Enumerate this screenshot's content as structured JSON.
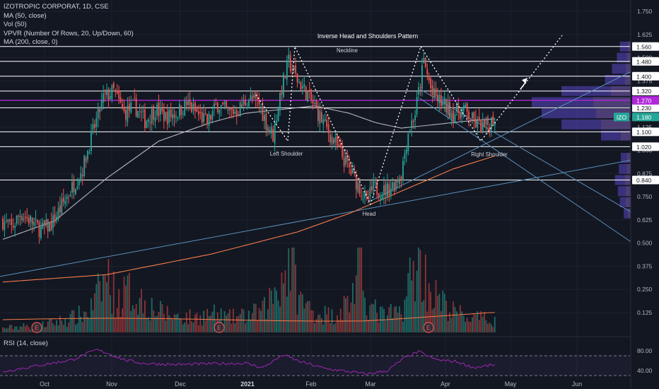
{
  "colors": {
    "background": "#131722",
    "up": "#26a69a",
    "down": "#ef5350",
    "up_vol": "#1f7a72",
    "down_vol": "#a03a3a",
    "ma50": "#b2b5be",
    "ma200": "#f57c4a",
    "trend": "#5b8fb9",
    "pattern": "#ffffff",
    "hline": "#ffffff",
    "purple_line": "#b027d9",
    "ticker": "#26a69a",
    "vpvr_up": "#5a47c7",
    "vpvr_down": "#7b5fb8",
    "rsi": "#9c27b0"
  },
  "legend": {
    "title": "IZOTROPIC CORPORAT, 1D, CSE",
    "line2": "MA (50, close)",
    "line3": "Vol (50)",
    "line4": "VPVR (Number Of Rows, 20, Up/Down, 60)",
    "line5": "MA (200, close, 0)"
  },
  "rsi_legend": "RSI (14, close)",
  "chart_data": {
    "type": "candlestick",
    "symbol": "IZO",
    "last_price": "1.180",
    "y_ticks": [
      "1.750",
      "1.625",
      "1.500",
      "1.375",
      "1.250",
      "1.125",
      "1.000",
      "0.875",
      "0.750",
      "0.625",
      "0.500",
      "0.375",
      "0.250",
      "0.125"
    ],
    "y_tick_values": [
      1.75,
      1.625,
      1.5,
      1.375,
      1.25,
      1.125,
      1.0,
      0.875,
      0.75,
      0.625,
      0.5,
      0.375,
      0.25,
      0.125
    ],
    "price_levels": [
      {
        "value": 1.56,
        "label": "1.560"
      },
      {
        "value": 1.48,
        "label": "1.480"
      },
      {
        "value": 1.4,
        "label": "1.400"
      },
      {
        "value": 1.32,
        "label": "1.320"
      },
      {
        "value": 1.23,
        "label": "1.230"
      },
      {
        "value": 1.1,
        "label": "1.100"
      },
      {
        "value": 1.02,
        "label": "1.020"
      },
      {
        "value": 0.84,
        "label": "0.840"
      }
    ],
    "purple_level": {
      "value": 1.27,
      "label": "1.270"
    },
    "x_labels": [
      {
        "label": "Oct",
        "bold": false
      },
      {
        "label": "Nov",
        "bold": false
      },
      {
        "label": "Dec",
        "bold": false
      },
      {
        "label": "2021",
        "bold": true
      },
      {
        "label": "Feb",
        "bold": false
      },
      {
        "label": "Mar",
        "bold": false
      },
      {
        "label": "Apr",
        "bold": false
      },
      {
        "label": "May",
        "bold": false
      },
      {
        "label": "Jun",
        "bold": false
      }
    ],
    "annotations": {
      "pattern_title": "Inverse Head and Shoulders Pattern",
      "neckline": "Neckline",
      "left_shoulder": "Left Shoulder",
      "head": "Head",
      "right_shoulder": "Right Shoulder"
    },
    "earnings_marker": "E",
    "rsi_ticks": [
      "80.00",
      "40.00"
    ],
    "close_path": [
      [
        0,
        0.62
      ],
      [
        5,
        0.58
      ],
      [
        10,
        0.66
      ],
      [
        16,
        0.62
      ],
      [
        22,
        0.57
      ],
      [
        28,
        0.6
      ],
      [
        34,
        0.7
      ],
      [
        40,
        0.8
      ],
      [
        46,
        0.9
      ],
      [
        52,
        1.1
      ],
      [
        58,
        1.28
      ],
      [
        64,
        1.32
      ],
      [
        70,
        1.2
      ],
      [
        76,
        1.24
      ],
      [
        82,
        1.16
      ],
      [
        88,
        1.22
      ],
      [
        94,
        1.18
      ],
      [
        100,
        1.2
      ],
      [
        106,
        1.25
      ],
      [
        112,
        1.2
      ],
      [
        118,
        1.15
      ],
      [
        124,
        1.25
      ],
      [
        130,
        1.2
      ],
      [
        136,
        1.22
      ],
      [
        142,
        1.28
      ],
      [
        148,
        1.25
      ],
      [
        152,
        1.15
      ],
      [
        156,
        1.08
      ],
      [
        160,
        1.3
      ],
      [
        165,
        1.48
      ],
      [
        170,
        1.38
      ],
      [
        176,
        1.3
      ],
      [
        182,
        1.2
      ],
      [
        188,
        1.1
      ],
      [
        194,
        1.0
      ],
      [
        200,
        0.9
      ],
      [
        206,
        0.8
      ],
      [
        210,
        0.72
      ],
      [
        214,
        0.8
      ],
      [
        220,
        0.78
      ],
      [
        226,
        0.82
      ],
      [
        230,
        0.88
      ],
      [
        234,
        1.1
      ],
      [
        238,
        1.2
      ],
      [
        243,
        1.48
      ],
      [
        248,
        1.3
      ],
      [
        254,
        1.25
      ],
      [
        260,
        1.2
      ],
      [
        266,
        1.22
      ],
      [
        272,
        1.15
      ],
      [
        278,
        1.12
      ],
      [
        284,
        1.18
      ]
    ],
    "volume_path": [
      [
        0,
        0.02
      ],
      [
        10,
        0.03
      ],
      [
        20,
        0.03
      ],
      [
        30,
        0.05
      ],
      [
        40,
        0.07
      ],
      [
        50,
        0.1
      ],
      [
        56,
        0.2
      ],
      [
        60,
        0.28
      ],
      [
        66,
        0.15
      ],
      [
        72,
        0.2
      ],
      [
        80,
        0.16
      ],
      [
        90,
        0.1
      ],
      [
        100,
        0.08
      ],
      [
        110,
        0.07
      ],
      [
        120,
        0.09
      ],
      [
        130,
        0.07
      ],
      [
        140,
        0.08
      ],
      [
        150,
        0.1
      ],
      [
        160,
        0.25
      ],
      [
        166,
        0.35
      ],
      [
        172,
        0.15
      ],
      [
        180,
        0.1
      ],
      [
        190,
        0.08
      ],
      [
        200,
        0.15
      ],
      [
        206,
        0.3
      ],
      [
        212,
        0.12
      ],
      [
        220,
        0.08
      ],
      [
        230,
        0.1
      ],
      [
        236,
        0.28
      ],
      [
        240,
        0.35
      ],
      [
        246,
        0.22
      ],
      [
        252,
        0.15
      ],
      [
        260,
        0.1
      ],
      [
        270,
        0.07
      ],
      [
        284,
        0.06
      ]
    ],
    "ma50_path": [
      [
        0,
        0.52
      ],
      [
        30,
        0.62
      ],
      [
        60,
        0.85
      ],
      [
        90,
        1.05
      ],
      [
        120,
        1.15
      ],
      [
        140,
        1.2
      ],
      [
        160,
        1.22
      ],
      [
        180,
        1.24
      ],
      [
        200,
        1.2
      ],
      [
        215,
        1.15
      ],
      [
        230,
        1.12
      ],
      [
        250,
        1.14
      ],
      [
        270,
        1.16
      ],
      [
        284,
        1.17
      ]
    ],
    "ma200_path": [
      [
        0,
        0.29
      ],
      [
        60,
        0.33
      ],
      [
        120,
        0.44
      ],
      [
        170,
        0.56
      ],
      [
        200,
        0.66
      ],
      [
        220,
        0.74
      ],
      [
        240,
        0.82
      ],
      [
        260,
        0.9
      ],
      [
        284,
        0.97
      ]
    ],
    "rsi_path": [
      [
        0,
        38
      ],
      [
        20,
        50
      ],
      [
        40,
        62
      ],
      [
        54,
        82
      ],
      [
        60,
        76
      ],
      [
        70,
        62
      ],
      [
        80,
        55
      ],
      [
        100,
        52
      ],
      [
        120,
        54
      ],
      [
        140,
        55
      ],
      [
        150,
        46
      ],
      [
        162,
        72
      ],
      [
        170,
        60
      ],
      [
        186,
        44
      ],
      [
        200,
        38
      ],
      [
        210,
        33
      ],
      [
        222,
        40
      ],
      [
        232,
        66
      ],
      [
        240,
        78
      ],
      [
        250,
        62
      ],
      [
        262,
        58
      ],
      [
        272,
        46
      ],
      [
        284,
        52
      ]
    ],
    "vpvr": [
      {
        "price": 1.56,
        "up": 0.08,
        "down": 0.03
      },
      {
        "price": 1.5,
        "up": 0.1,
        "down": 0.04
      },
      {
        "price": 1.44,
        "up": 0.14,
        "down": 0.05
      },
      {
        "price": 1.38,
        "up": 0.2,
        "down": 0.06
      },
      {
        "price": 1.32,
        "up": 0.5,
        "down": 0.2
      },
      {
        "price": 1.26,
        "up": 0.62,
        "down": 0.38
      },
      {
        "price": 1.2,
        "up": 0.55,
        "down": 0.35
      },
      {
        "price": 1.14,
        "up": 0.4,
        "down": 0.3
      },
      {
        "price": 1.08,
        "up": 0.2,
        "down": 0.1
      },
      {
        "price": 0.96,
        "up": 0.06,
        "down": 0.04
      },
      {
        "price": 0.9,
        "up": 0.08,
        "down": 0.04
      },
      {
        "price": 0.84,
        "up": 0.1,
        "down": 0.06
      },
      {
        "price": 0.78,
        "up": 0.08,
        "down": 0.05
      },
      {
        "price": 0.72,
        "up": 0.06,
        "down": 0.05
      },
      {
        "price": 0.66,
        "up": 0.04,
        "down": 0.03
      }
    ]
  }
}
